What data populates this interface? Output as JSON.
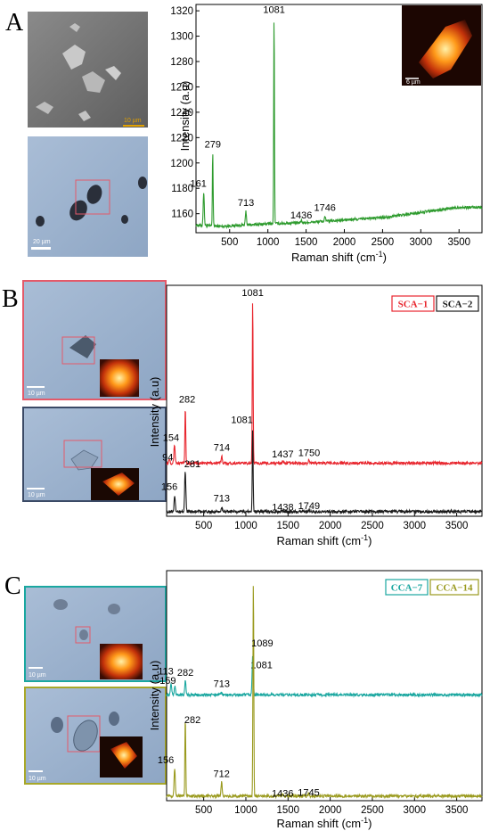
{
  "panels": [
    {
      "letter": "A",
      "images": [
        {
          "kind": "sem",
          "scale": "10 µm"
        },
        {
          "kind": "optical",
          "scale": "20 µm"
        }
      ],
      "inset_scale": "6 µm"
    },
    {
      "letter": "B",
      "images": [
        {
          "kind": "optical",
          "scale": "10 µm"
        },
        {
          "kind": "optical",
          "scale": "10 µm"
        }
      ]
    },
    {
      "letter": "C",
      "images": [
        {
          "kind": "optical",
          "scale": "10 µm"
        },
        {
          "kind": "optical",
          "scale": "10 µm"
        }
      ]
    }
  ],
  "chart_data": [
    {
      "type": "line",
      "panel": "A",
      "xlabel": "Raman shift (cm⁻¹)",
      "ylabel": "Intensity (a.u)",
      "xlim": [
        60,
        3800
      ],
      "ylim": [
        1145,
        1325
      ],
      "xticks": [
        500,
        1000,
        1500,
        2000,
        2500,
        3000,
        3500
      ],
      "yticks": [
        1160,
        1180,
        1200,
        1220,
        1240,
        1260,
        1280,
        1300,
        1320
      ],
      "series": [
        {
          "color": "#2e9b2e",
          "baseline": [
            [
              60,
              1151
            ],
            [
              400,
              1150
            ],
            [
              1000,
              1152
            ],
            [
              1500,
              1153
            ],
            [
              2000,
              1155
            ],
            [
              2500,
              1157
            ],
            [
              3000,
              1161
            ],
            [
              3500,
              1165
            ],
            [
              3800,
              1165
            ]
          ],
          "peaks": [
            {
              "x": 161,
              "y": 1177
            },
            {
              "x": 279,
              "y": 1208
            },
            {
              "x": 713,
              "y": 1162
            },
            {
              "x": 1081,
              "y": 1314
            },
            {
              "x": 1436,
              "y": 1155
            },
            {
              "x": 1746,
              "y": 1158
            }
          ]
        }
      ]
    },
    {
      "type": "line",
      "panel": "B",
      "xlabel": "Raman shift (cm⁻¹)",
      "ylabel": "Intensity (a.u)",
      "xlim": [
        60,
        3800
      ],
      "ylim": [
        0,
        100
      ],
      "xticks": [
        500,
        1000,
        1500,
        2000,
        2500,
        3000,
        3500
      ],
      "legend": [
        "SCA−1",
        "SCA−2"
      ],
      "legend_position": "top-right",
      "series": [
        {
          "name": "SCA−1",
          "color": "#e8262e",
          "baseline": [
            [
              60,
              23
            ],
            [
              3800,
              23
            ]
          ],
          "peaks": [
            {
              "x": 94,
              "y": 25
            },
            {
              "x": 154,
              "y": 31
            },
            {
              "x": 282,
              "y": 47
            },
            {
              "x": 714,
              "y": 26
            },
            {
              "x": 1081,
              "y": 93
            },
            {
              "x": 1437,
              "y": 24
            },
            {
              "x": 1750,
              "y": 24.5
            }
          ]
        },
        {
          "name": "SCA−2",
          "color": "#1a1a1a",
          "baseline": [
            [
              60,
              2
            ],
            [
              3800,
              2
            ]
          ],
          "peaks": [
            {
              "x": 156,
              "y": 9
            },
            {
              "x": 281,
              "y": 19
            },
            {
              "x": 713,
              "y": 4
            },
            {
              "x": 1081,
              "y": 38
            },
            {
              "x": 1438,
              "y": 2.5
            },
            {
              "x": 1749,
              "y": 3
            }
          ]
        }
      ]
    },
    {
      "type": "line",
      "panel": "C",
      "xlabel": "Raman shift (cm⁻¹)",
      "ylabel": "Intensity (a.u)",
      "xlim": [
        60,
        3800
      ],
      "ylim": [
        0,
        100
      ],
      "xticks": [
        500,
        1000,
        1500,
        2000,
        2500,
        3000,
        3500
      ],
      "legend": [
        "CCA−7",
        "CCA−14"
      ],
      "legend_position": "top-right",
      "series": [
        {
          "name": "CCA−7",
          "color": "#1aa7a0",
          "baseline": [
            [
              60,
              46
            ],
            [
              3800,
              46
            ]
          ],
          "peaks": [
            {
              "x": 113,
              "y": 51
            },
            {
              "x": 159,
              "y": 50
            },
            {
              "x": 282,
              "y": 52
            },
            {
              "x": 713,
              "y": 47
            },
            {
              "x": 1081,
              "y": 63
            }
          ]
        },
        {
          "name": "CCA−14",
          "color": "#9a9a1e",
          "baseline": [
            [
              60,
              2
            ],
            [
              3800,
              2
            ]
          ],
          "peaks": [
            {
              "x": 156,
              "y": 14
            },
            {
              "x": 282,
              "y": 36
            },
            {
              "x": 712,
              "y": 8
            },
            {
              "x": 1089,
              "y": 95
            },
            {
              "x": 1436,
              "y": 2.5
            },
            {
              "x": 1745,
              "y": 3
            }
          ]
        }
      ]
    }
  ]
}
